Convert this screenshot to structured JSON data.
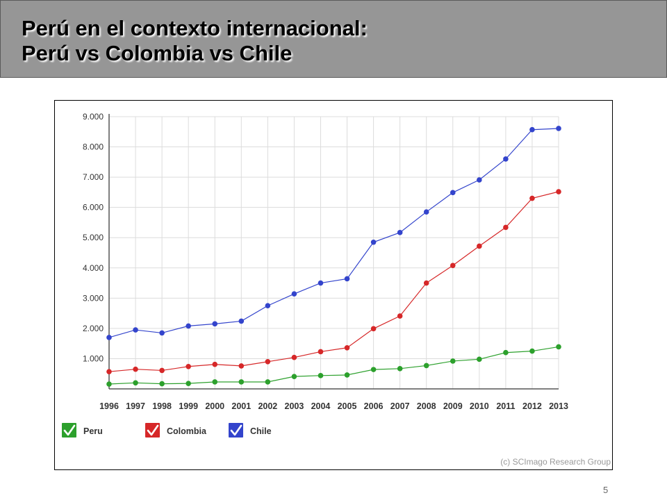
{
  "slide": {
    "title_line1": "Perú en el contexto internacional:",
    "title_line2": "Perú vs Colombia vs Chile",
    "page_number": "5"
  },
  "chart_data": {
    "type": "line",
    "x": [
      1996,
      1997,
      1998,
      1999,
      2000,
      2001,
      2002,
      2003,
      2004,
      2005,
      2006,
      2007,
      2008,
      2009,
      2010,
      2011,
      2012,
      2013
    ],
    "x_tick_labels": [
      "1996",
      "1997",
      "1998",
      "1999",
      "2000",
      "2001",
      "2002",
      "2003",
      "2004",
      "2005",
      "2006",
      "2007",
      "2008",
      "2009",
      "2010",
      "2011",
      "2012",
      "2013"
    ],
    "ylim": [
      0,
      9000
    ],
    "y_ticks": [
      1000,
      2000,
      3000,
      4000,
      5000,
      6000,
      7000,
      8000,
      9000
    ],
    "y_tick_labels": [
      "1.000",
      "2.000",
      "3.000",
      "4.000",
      "5.000",
      "6.000",
      "7.000",
      "8.000",
      "9.000"
    ],
    "grid": true,
    "legend_position": "bottom-left",
    "series": [
      {
        "name": "Peru",
        "color": "#2ca02c",
        "values": [
          160,
          200,
          170,
          180,
          230,
          230,
          230,
          410,
          440,
          460,
          640,
          670,
          770,
          920,
          980,
          1200,
          1250,
          1390
        ]
      },
      {
        "name": "Colombia",
        "color": "#d62728",
        "values": [
          570,
          650,
          610,
          740,
          810,
          760,
          900,
          1040,
          1230,
          1360,
          1990,
          2410,
          3500,
          4080,
          4720,
          5340,
          6300,
          6520
        ]
      },
      {
        "name": "Chile",
        "color": "#3344cc",
        "values": [
          1700,
          1950,
          1850,
          2080,
          2150,
          2240,
          2750,
          3140,
          3500,
          3640,
          4850,
          5170,
          5850,
          6490,
          6910,
          7600,
          8570,
          8610
        ]
      }
    ],
    "watermark": "(c) SCImago Research Group"
  }
}
